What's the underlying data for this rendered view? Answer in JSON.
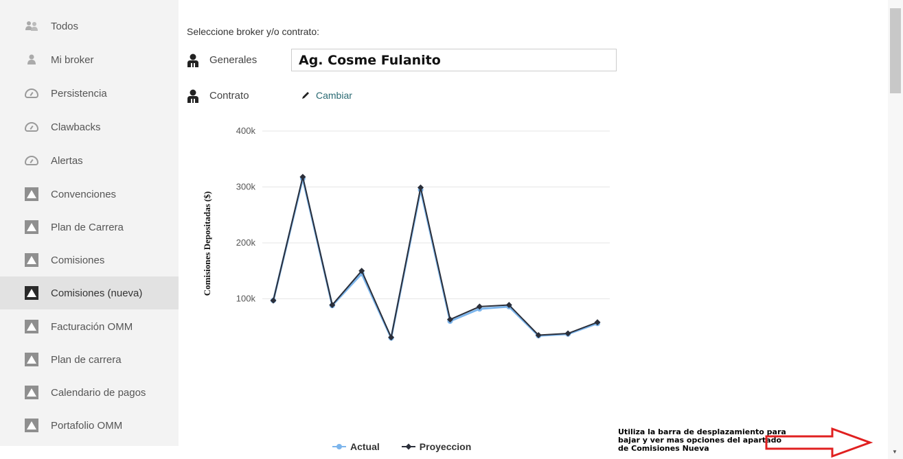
{
  "sidebar": {
    "items": [
      {
        "label": "Todos",
        "icon": "users-icon"
      },
      {
        "label": "Mi broker",
        "icon": "user-icon"
      },
      {
        "label": "Persistencia",
        "icon": "gauge-icon"
      },
      {
        "label": "Clawbacks",
        "icon": "gauge-icon"
      },
      {
        "label": "Alertas",
        "icon": "gauge-icon"
      },
      {
        "label": "Convenciones",
        "icon": "triangle-box-icon"
      },
      {
        "label": "Plan de Carrera",
        "icon": "triangle-box-icon"
      },
      {
        "label": "Comisiones",
        "icon": "triangle-box-icon"
      },
      {
        "label": "Comisiones (nueva)",
        "icon": "triangle-box-icon",
        "active": true
      },
      {
        "label": "Facturación OMM",
        "icon": "triangle-box-icon"
      },
      {
        "label": "Plan de carrera",
        "icon": "triangle-box-icon"
      },
      {
        "label": "Calendario de pagos",
        "icon": "triangle-box-icon"
      },
      {
        "label": "Portafolio OMM",
        "icon": "triangle-box-icon"
      }
    ]
  },
  "main": {
    "select_label": "Seleccione broker y/o contrato:",
    "generales_label": "Generales",
    "broker_value": "Ag. Cosme Fulanito",
    "contrato_label": "Contrato",
    "change_label": "Cambiar"
  },
  "chart_data": {
    "type": "line",
    "ylabel": "Comisiones Depositadas ($)",
    "ylim": [
      0,
      400000
    ],
    "yticks": [
      "100k",
      "200k",
      "300k",
      "400k"
    ],
    "grid": true,
    "legend_position": "bottom",
    "series": [
      {
        "name": "Actual",
        "color": "#7cb5ec",
        "values": [
          97000,
          315000,
          88000,
          145000,
          30000,
          295000,
          60000,
          82000,
          86000,
          34000,
          37000,
          56000
        ]
      },
      {
        "name": "Proyeccion",
        "color": "#2b2f3a",
        "values": [
          97000,
          318000,
          89000,
          150000,
          31000,
          299000,
          63000,
          86000,
          89000,
          35000,
          38000,
          58000
        ]
      }
    ]
  },
  "annotation": {
    "text": "Utiliza la barra de desplazamiento para bajar y ver mas opciones del apartado de Comisiones Nueva",
    "arrow_color": "#e02020"
  }
}
